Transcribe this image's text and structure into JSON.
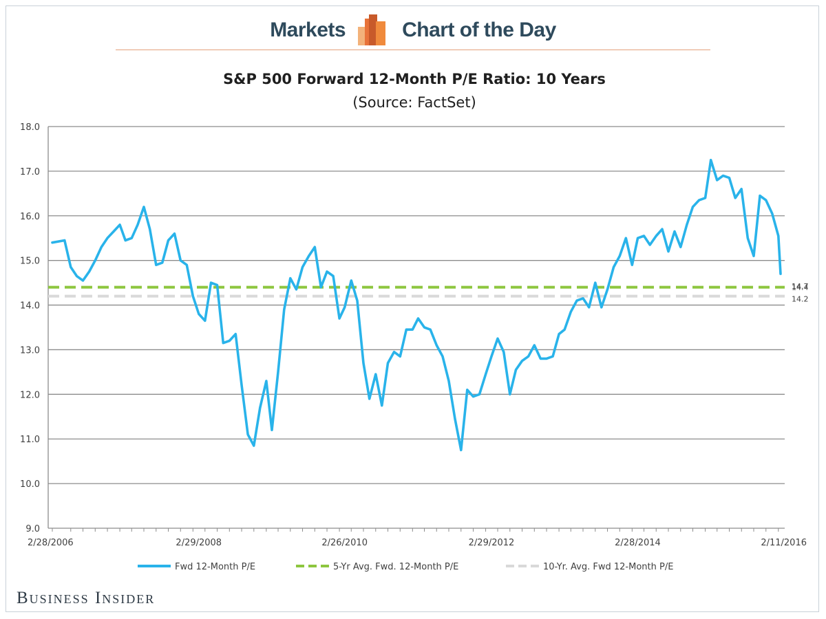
{
  "header": {
    "left_word": "Markets",
    "right_word": "Chart of the Day"
  },
  "brand": "Business Insider",
  "colors": {
    "series_line": "#29b3ea",
    "five_yr_avg": "#8dc63f",
    "ten_yr_avg": "#d9d9d9",
    "header_text": "#2e4a5c",
    "logo_orange": "#f08a3c"
  },
  "chart_data": {
    "type": "line",
    "title": "S&P 500 Forward 12-Month P/E Ratio: 10 Years",
    "subtitle": "(Source: FactSet)",
    "ylim": [
      9.0,
      18.0
    ],
    "y_ticks": [
      "9.0",
      "10.0",
      "11.0",
      "12.0",
      "13.0",
      "14.0",
      "15.0",
      "16.0",
      "17.0",
      "18.0"
    ],
    "x_tick_labels": [
      "2/28/2006",
      "2/29/2008",
      "2/26/2010",
      "2/29/2012",
      "2/28/2014",
      "2/11/2016"
    ],
    "x_tick_dates": [
      "2006-02-28",
      "2008-02-29",
      "2010-02-26",
      "2012-02-29",
      "2014-02-28",
      "2016-02-11"
    ],
    "grid": true,
    "legend_position": "bottom",
    "series": [
      {
        "name": "Fwd 12-Month P/E",
        "style": "solid",
        "x": [
          "2006-02-28",
          "2006-04-30",
          "2006-05-31",
          "2006-06-30",
          "2006-07-31",
          "2006-08-31",
          "2006-09-30",
          "2006-10-31",
          "2006-11-30",
          "2006-12-31",
          "2007-01-31",
          "2007-02-28",
          "2007-03-31",
          "2007-04-30",
          "2007-05-31",
          "2007-06-30",
          "2007-07-31",
          "2007-08-31",
          "2007-09-30",
          "2007-10-31",
          "2007-11-30",
          "2007-12-31",
          "2008-01-31",
          "2008-02-29",
          "2008-03-31",
          "2008-04-30",
          "2008-05-31",
          "2008-06-30",
          "2008-07-31",
          "2008-08-31",
          "2008-09-30",
          "2008-10-31",
          "2008-11-30",
          "2008-12-31",
          "2009-01-31",
          "2009-02-28",
          "2009-03-31",
          "2009-04-30",
          "2009-05-31",
          "2009-06-30",
          "2009-07-31",
          "2009-08-31",
          "2009-09-30",
          "2009-10-31",
          "2009-11-30",
          "2009-12-31",
          "2010-01-31",
          "2010-02-26",
          "2010-03-31",
          "2010-04-30",
          "2010-05-31",
          "2010-06-30",
          "2010-07-31",
          "2010-08-31",
          "2010-09-30",
          "2010-10-31",
          "2010-11-30",
          "2010-12-31",
          "2011-01-31",
          "2011-02-28",
          "2011-03-31",
          "2011-04-30",
          "2011-05-31",
          "2011-06-30",
          "2011-07-31",
          "2011-08-31",
          "2011-09-30",
          "2011-10-31",
          "2011-11-30",
          "2011-12-31",
          "2012-01-31",
          "2012-02-29",
          "2012-03-31",
          "2012-04-30",
          "2012-05-31",
          "2012-06-30",
          "2012-07-31",
          "2012-08-31",
          "2012-09-30",
          "2012-10-31",
          "2012-11-30",
          "2012-12-31",
          "2013-01-31",
          "2013-02-28",
          "2013-03-31",
          "2013-04-30",
          "2013-05-31",
          "2013-06-30",
          "2013-07-31",
          "2013-08-31",
          "2013-09-30",
          "2013-10-31",
          "2013-11-30",
          "2013-12-31",
          "2014-01-31",
          "2014-02-28",
          "2014-03-31",
          "2014-04-30",
          "2014-05-31",
          "2014-06-30",
          "2014-07-31",
          "2014-08-31",
          "2014-09-30",
          "2014-10-31",
          "2014-11-30",
          "2014-12-31",
          "2015-01-31",
          "2015-02-28",
          "2015-03-31",
          "2015-04-30",
          "2015-05-31",
          "2015-06-30",
          "2015-07-31",
          "2015-08-31",
          "2015-09-30",
          "2015-10-31",
          "2015-11-30",
          "2015-12-31",
          "2016-01-31",
          "2016-02-11"
        ],
        "values": [
          15.4,
          15.45,
          14.85,
          14.65,
          14.55,
          14.75,
          15.0,
          15.3,
          15.5,
          15.65,
          15.8,
          15.45,
          15.5,
          15.8,
          16.2,
          15.7,
          14.9,
          14.95,
          15.45,
          15.6,
          15.0,
          14.9,
          14.2,
          13.8,
          13.65,
          14.5,
          14.45,
          13.15,
          13.2,
          13.35,
          12.2,
          11.1,
          10.85,
          11.7,
          12.3,
          11.2,
          12.5,
          13.9,
          14.6,
          14.35,
          14.85,
          15.1,
          15.3,
          14.4,
          14.75,
          14.65,
          13.7,
          13.95,
          14.55,
          14.1,
          12.7,
          11.9,
          12.45,
          11.75,
          12.7,
          12.95,
          12.85,
          13.45,
          13.45,
          13.7,
          13.5,
          13.45,
          13.1,
          12.85,
          12.3,
          11.45,
          10.75,
          12.1,
          11.95,
          12.0,
          12.45,
          12.85,
          13.25,
          12.95,
          12.0,
          12.55,
          12.75,
          12.85,
          13.1,
          12.8,
          12.8,
          12.85,
          13.35,
          13.45,
          13.85,
          14.1,
          14.15,
          13.95,
          14.5,
          13.95,
          14.35,
          14.85,
          15.1,
          15.5,
          14.9,
          15.5,
          15.55,
          15.35,
          15.55,
          15.7,
          15.2,
          15.65,
          15.3,
          15.8,
          16.2,
          16.35,
          16.4,
          17.25,
          16.8,
          16.9,
          16.85,
          16.4,
          16.6,
          15.5,
          15.1,
          16.45,
          16.35,
          16.05,
          15.55,
          14.7
        ]
      },
      {
        "name": "5-Yr Avg. Fwd. 12-Month P/E",
        "style": "dashed",
        "value": 14.4
      },
      {
        "name": "10-Yr. Avg. Fwd 12-Month P/E",
        "style": "dashed",
        "value": 14.2
      }
    ],
    "end_labels": [
      "14.7",
      "14.4",
      "14.2"
    ]
  }
}
